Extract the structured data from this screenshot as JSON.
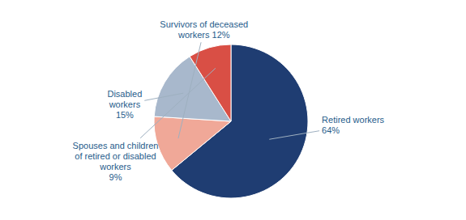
{
  "chart_data": {
    "type": "pie",
    "categories": [
      "Retired workers\n64%",
      "Survivors of deceased\nworkers 12%",
      "Disabled\nworkers\n15%",
      "Spouses and children\nof retired or disabled\nworkers\n9%"
    ],
    "values": [
      64,
      12,
      15,
      9
    ],
    "colors": [
      "#1F3D72",
      "#F0A898",
      "#A8B8CC",
      "#D94F45"
    ]
  }
}
